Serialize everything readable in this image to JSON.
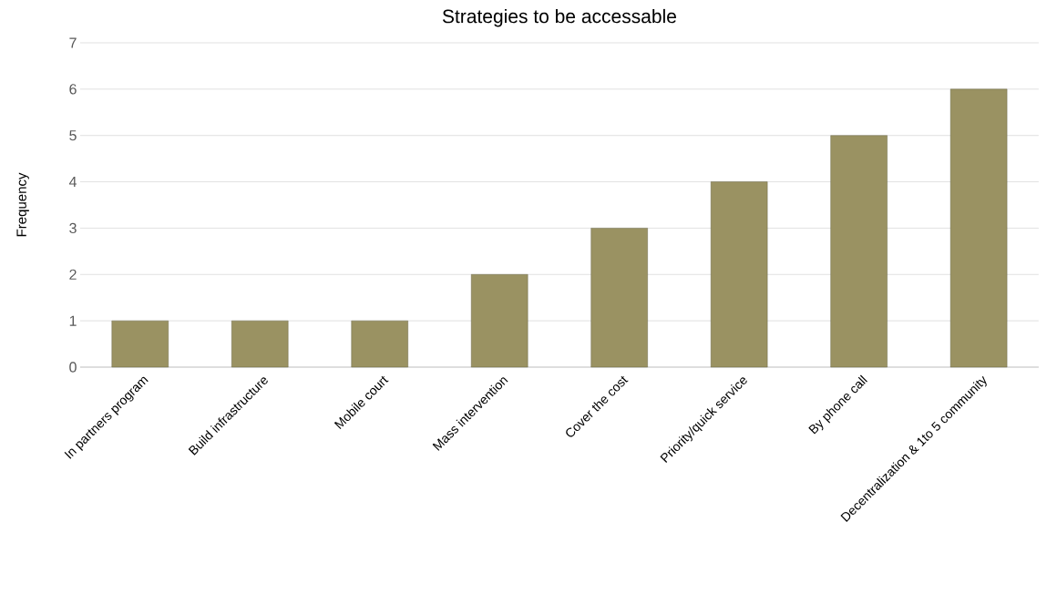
{
  "chart_data": {
    "type": "bar",
    "title": "Strategies to be accessable",
    "ylabel": "Frequency",
    "categories": [
      "In partners program",
      "Build infrastructure",
      "Mobile court",
      "Mass intervention",
      "Cover the cost",
      "Priority/quick service",
      "By phone call",
      "Decentralization & 1to 5 community"
    ],
    "values": [
      1,
      1,
      1,
      2,
      3,
      4,
      5,
      6
    ],
    "color": "#9a9262",
    "ylim": [
      0,
      7
    ],
    "yticks": [
      0,
      1,
      2,
      3,
      4,
      5,
      6,
      7
    ],
    "grid": "y"
  }
}
